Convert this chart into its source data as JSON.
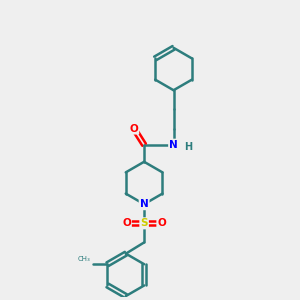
{
  "background_color": "#efefef",
  "bond_color": "#2d7d7d",
  "atom_colors": {
    "O": "#ff0000",
    "N": "#0000ff",
    "S": "#cccc00",
    "C": "#2d7d7d",
    "H": "#2d7d7d"
  },
  "figsize": [
    3.0,
    3.0
  ],
  "dpi": 100
}
